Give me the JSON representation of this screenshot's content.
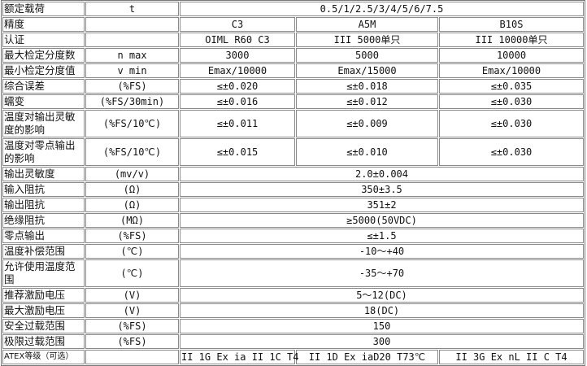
{
  "table": {
    "rows": [
      {
        "label": "额定载荷",
        "unit": "t",
        "values": [
          "0.5/1/2.5/3/4/5/6/7.5"
        ]
      },
      {
        "label": "精度",
        "unit": "",
        "values": [
          "C3",
          "A5M",
          "B10S"
        ]
      },
      {
        "label": "认证",
        "unit": "",
        "values": [
          "OIML R60 C3",
          "III 5000单只",
          "III 10000单只"
        ]
      },
      {
        "label": "最大检定分度数",
        "unit": "n max",
        "values": [
          "3000",
          "5000",
          "10000"
        ]
      },
      {
        "label": "最小检定分度值",
        "unit": "v min",
        "values": [
          "Emax/10000",
          "Emax/15000",
          "Emax/10000"
        ]
      },
      {
        "label": "综合误差",
        "unit": "(%FS)",
        "values": [
          "≤±0.020",
          "≤±0.018",
          "≤±0.035"
        ]
      },
      {
        "label": "蠕变",
        "unit": "(%FS/30min)",
        "values": [
          "≤±0.016",
          "≤±0.012",
          "≤±0.030"
        ]
      },
      {
        "label": "温度对输出灵敏度的影响",
        "unit": "(%FS/10℃)",
        "values": [
          "≤±0.011",
          "≤±0.009",
          "≤±0.030"
        ],
        "tall": true
      },
      {
        "label": "温度对零点输出的影响",
        "unit": "(%FS/10℃)",
        "values": [
          "≤±0.015",
          "≤±0.010",
          "≤±0.030"
        ],
        "tall": true
      },
      {
        "label": "输出灵敏度",
        "unit": "(mv/v)",
        "values": [
          "2.0±0.004"
        ]
      },
      {
        "label": "输入阻抗",
        "unit": "(Ω)",
        "values": [
          "350±3.5"
        ]
      },
      {
        "label": "输出阻抗",
        "unit": "(Ω)",
        "values": [
          "351±2"
        ]
      },
      {
        "label": "绝缘阻抗",
        "unit": "(MΩ)",
        "values": [
          "≥5000(50VDC)"
        ]
      },
      {
        "label": "零点输出",
        "unit": "(%FS)",
        "values": [
          "≤±1.5"
        ]
      },
      {
        "label": "温度补偿范围",
        "unit": "(℃)",
        "values": [
          "-10～+40"
        ]
      },
      {
        "label": "允许使用温度范围",
        "unit": "(℃)",
        "values": [
          "-35～+70"
        ],
        "tall": true
      },
      {
        "label": "推荐激励电压",
        "unit": "(V)",
        "values": [
          "5～12(DC)"
        ]
      },
      {
        "label": "最大激励电压",
        "unit": "(V)",
        "values": [
          "18(DC)"
        ]
      },
      {
        "label": "安全过载范围",
        "unit": "(%FS)",
        "values": [
          "150"
        ]
      },
      {
        "label": "极限过载范围",
        "unit": "(%FS)",
        "values": [
          "300"
        ]
      },
      {
        "label": "ATEX等级（可选）",
        "unit": "",
        "values": [
          "II 1G Ex ia II 1C T4",
          "II 1D Ex iaD20 T73℃",
          "II 3G Ex nL II C T4"
        ],
        "small": true
      }
    ]
  }
}
